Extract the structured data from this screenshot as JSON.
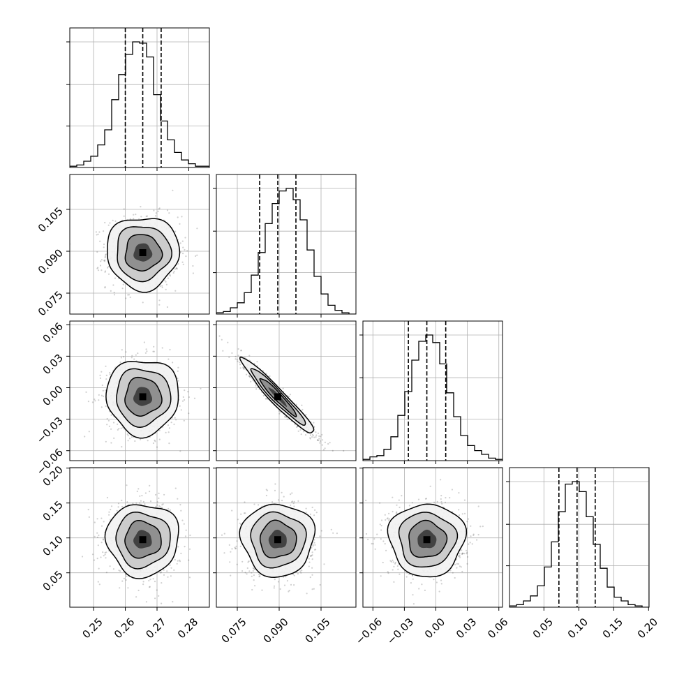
{
  "chart_data": {
    "type": "corner",
    "parameters": [
      {
        "ticks": [
          "0.25",
          "0.26",
          "0.27",
          "0.28"
        ],
        "range": [
          0.2425,
          0.2865
        ],
        "median": 0.2655,
        "q16": 0.26,
        "q84": 0.2713,
        "std": 0.0057,
        "hist": [
          1,
          2,
          5,
          9,
          18,
          30,
          54,
          74,
          90,
          100,
          99,
          88,
          58,
          37,
          22,
          12,
          6,
          3,
          1,
          1
        ]
      },
      {
        "ticks": [
          "0.075",
          "0.090",
          "0.105"
        ],
        "range": [
          0.0675,
          0.1175
        ],
        "median": 0.0895,
        "q16": 0.083,
        "q84": 0.096,
        "std": 0.0065,
        "hist": [
          1,
          2,
          5,
          9,
          17,
          31,
          49,
          72,
          88,
          98,
          100,
          91,
          75,
          51,
          30,
          16,
          7,
          3,
          1,
          0
        ]
      },
      {
        "ticks": [
          "−0.06",
          "−0.03",
          "0.00",
          "0.03",
          "0.06"
        ],
        "range": [
          -0.0695,
          0.0635
        ],
        "median": -0.0086,
        "q16": -0.0262,
        "q84": 0.0094,
        "std": 0.018,
        "hist": [
          1,
          3,
          4,
          9,
          19,
          36,
          55,
          80,
          95,
          100,
          94,
          77,
          54,
          35,
          20,
          12,
          8,
          5,
          2,
          1
        ]
      },
      {
        "ticks": [
          "0.05",
          "0.10",
          "0.15",
          "0.20"
        ],
        "range": [
          0.0007,
          0.2007
        ],
        "median": 0.0975,
        "q16": 0.0715,
        "q84": 0.1235,
        "std": 0.026,
        "hist": [
          1,
          2,
          5,
          9,
          17,
          32,
          52,
          76,
          98,
          100,
          92,
          72,
          50,
          31,
          16,
          8,
          5,
          2,
          1,
          0
        ]
      }
    ],
    "correlations": [
      [
        1.0,
        0.0,
        0.0,
        0.0
      ],
      [
        0.0,
        1.0,
        -0.96,
        0.0
      ],
      [
        0.0,
        -0.96,
        1.0,
        0.0
      ],
      [
        0.0,
        0.0,
        0.0,
        1.0
      ]
    ],
    "contour_sigmas": [
      0.5,
      1.0,
      1.5,
      2.0
    ],
    "grid": true
  }
}
